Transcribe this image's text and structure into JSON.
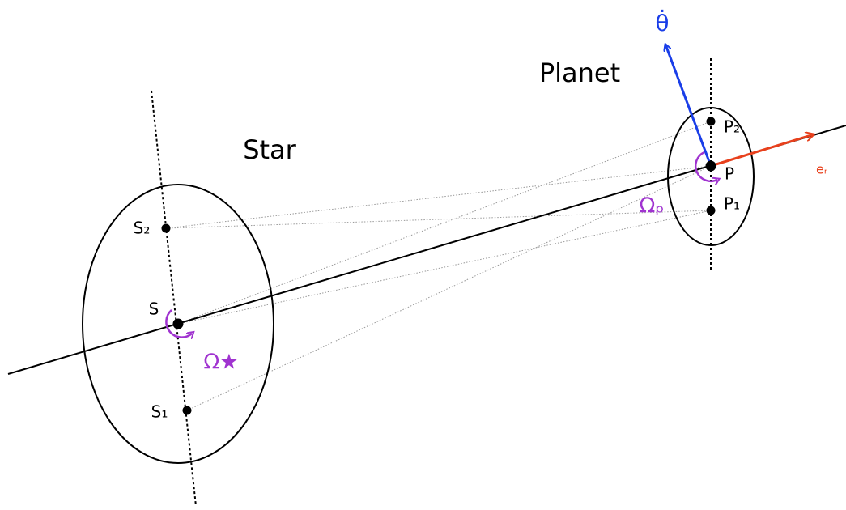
{
  "star": {
    "title": "Star",
    "points": [
      "S₂",
      "S",
      "S₁"
    ],
    "spin": "Ω★"
  },
  "planet": {
    "title": "Planet",
    "points": [
      "P₂",
      "P",
      "P₁"
    ],
    "spin": "Ωₚ"
  },
  "vectors": {
    "radial": "eᵣ",
    "tangential": "θ̇"
  }
}
